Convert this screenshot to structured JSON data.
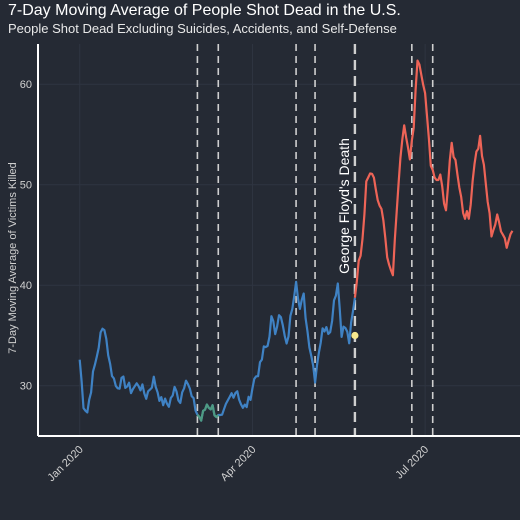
{
  "chart_data": {
    "type": "line",
    "title": "7-Day Moving Average of People Shot Dead in the U.S.",
    "subtitle": "People Shot Dead Excluding Suicides, Accidents, and Self-Defense",
    "ylabel": "7-Day Moving Average of Victims Killed",
    "xlabel": "",
    "x_ticks": [
      {
        "date": "2020-01-01",
        "label": "Jan 2020"
      },
      {
        "date": "2020-04-01",
        "label": "Apr 2020"
      },
      {
        "date": "2020-07-01",
        "label": "Jul 2020"
      }
    ],
    "y_ticks": [
      30,
      40,
      50,
      60
    ],
    "xlim": [
      "2019-12-10",
      "2020-08-20"
    ],
    "ylim": [
      25,
      64
    ],
    "grid": true,
    "colors": {
      "background": "#252a34",
      "grid": "#2f3541",
      "before": "#3f82c4",
      "after": "#ee6457",
      "highlight": "#4e9a82",
      "vline": "#cfcfcf",
      "marker": "#f7e98e"
    },
    "vlines_dates": [
      "2020-03-03",
      "2020-03-14",
      "2020-04-24",
      "2020-05-04",
      "2020-05-25",
      "2020-06-24",
      "2020-07-05"
    ],
    "event": {
      "date": "2020-05-25",
      "label": "George Floyd's Death",
      "point_value": 35
    }
  }
}
